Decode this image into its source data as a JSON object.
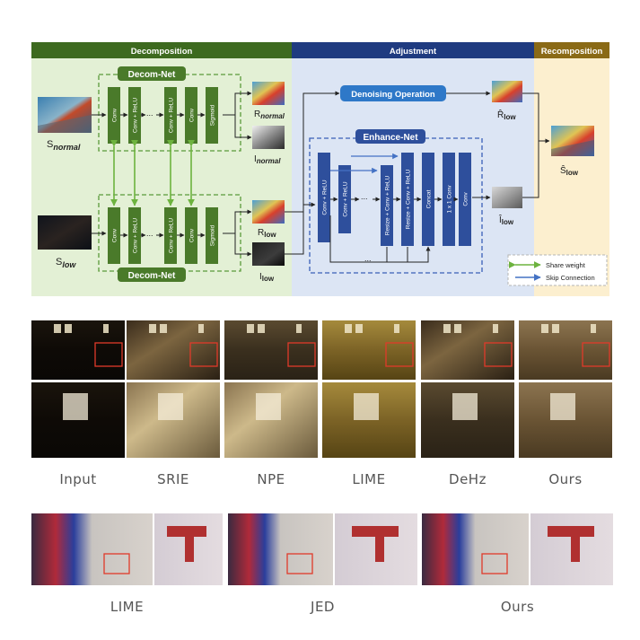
{
  "diagram": {
    "sections": {
      "decomposition": "Decomposition",
      "adjustment": "Adjustment",
      "recomposition": "Recomposition"
    },
    "modules": {
      "decom_top": "Decom-Net",
      "decom_bottom": "Decom-Net",
      "denoise": "Denoising Operation",
      "enhance": "Enhance-Net"
    },
    "decom_layers": [
      "Conv",
      "Conv + ReLU",
      "...",
      "Conv + ReLU",
      "Conv",
      "Sigmoid"
    ],
    "enhance_layers": [
      "Conv + ReLU",
      "Conv + ReLU",
      "...",
      "Resize + Conv + ReLU",
      "Resize + Conv + ReLU",
      "Concat",
      "1 x 1 Conv",
      "Conv"
    ],
    "ellipsis": "...",
    "symbols": {
      "s_normal": "S",
      "s_normal_sub": "normal",
      "s_low": "S",
      "s_low_sub": "low",
      "r_normal": "R",
      "r_normal_sub": "normal",
      "i_normal": "I",
      "i_normal_sub": "normal",
      "r_low": "R",
      "r_low_sub": "low",
      "i_low": "I",
      "i_low_sub": "low",
      "r_hat": "R̂",
      "r_hat_sub": "low",
      "i_hat": "Î",
      "i_hat_sub": "low",
      "s_hat": "Ŝ",
      "s_hat_sub": "low"
    },
    "legend": {
      "share": "Share weight",
      "skip": "Skip Connection"
    },
    "colors": {
      "decomposition_header": "#3d6a1f",
      "adjustment_header": "#1f3b80",
      "recomposition_header": "#8a6a16",
      "decomposition_bg": "#e3f0d5",
      "adjustment_bg": "#dce5f4",
      "recomposition_bg": "#fcefcf",
      "green_block": "#4a7a2a",
      "blue_block": "#2e4f9c"
    }
  },
  "comparison1": {
    "captions": [
      "Input",
      "SRIE",
      "NPE",
      "LIME",
      "DeHz",
      "Ours"
    ]
  },
  "comparison2": {
    "captions": [
      "LIME",
      "JED",
      "Ours"
    ]
  }
}
